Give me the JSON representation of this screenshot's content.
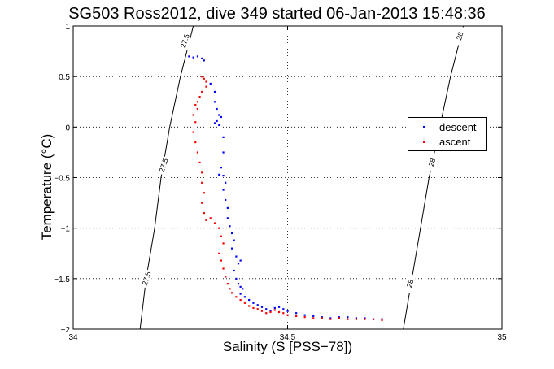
{
  "chart_data": {
    "type": "scatter",
    "title": "SG503 Ross2012, dive 349 started 06-Jan-2013 15:48:36",
    "xlabel": "Salinity (S [PSS−78])",
    "ylabel": "Temperature (°C)",
    "xlim": [
      34,
      35
    ],
    "ylim": [
      -2,
      1
    ],
    "xticks": [
      34,
      34.5,
      35
    ],
    "xtick_labels": [
      "34",
      "34.5",
      "35"
    ],
    "yticks": [
      -2,
      -1.5,
      -1,
      -0.5,
      0,
      0.5,
      1
    ],
    "ytick_labels": [
      "−2",
      "−1.5",
      "−1",
      "−0.5",
      "0",
      "0.5",
      "1"
    ],
    "grid": true,
    "legend_position": "right",
    "series": [
      {
        "name": "descent",
        "color": "#0000ff",
        "points": [
          [
            34.27,
            0.7
          ],
          [
            34.28,
            0.69
          ],
          [
            34.29,
            0.7
          ],
          [
            34.3,
            0.68
          ],
          [
            34.305,
            0.66
          ],
          [
            34.32,
            0.43
          ],
          [
            34.33,
            0.35
          ],
          [
            34.33,
            0.25
          ],
          [
            34.335,
            0.18
          ],
          [
            34.34,
            0.12
          ],
          [
            34.335,
            0.06
          ],
          [
            34.33,
            0.04
          ],
          [
            34.34,
            0.02
          ],
          [
            34.345,
            0.1
          ],
          [
            34.35,
            -0.1
          ],
          [
            34.35,
            -0.25
          ],
          [
            34.345,
            -0.4
          ],
          [
            34.34,
            -0.47
          ],
          [
            34.35,
            -0.48
          ],
          [
            34.355,
            -0.55
          ],
          [
            34.35,
            -0.62
          ],
          [
            34.355,
            -0.72
          ],
          [
            34.36,
            -0.8
          ],
          [
            34.36,
            -0.9
          ],
          [
            34.365,
            -0.98
          ],
          [
            34.37,
            -1.05
          ],
          [
            34.375,
            -1.12
          ],
          [
            34.37,
            -1.2
          ],
          [
            34.38,
            -1.28
          ],
          [
            34.385,
            -1.35
          ],
          [
            34.39,
            -1.32
          ],
          [
            34.375,
            -1.42
          ],
          [
            34.38,
            -1.5
          ],
          [
            34.385,
            -1.55
          ],
          [
            34.39,
            -1.58
          ],
          [
            34.395,
            -1.6
          ],
          [
            34.39,
            -1.65
          ],
          [
            34.4,
            -1.68
          ],
          [
            34.41,
            -1.71
          ],
          [
            34.42,
            -1.74
          ],
          [
            34.43,
            -1.76
          ],
          [
            34.44,
            -1.78
          ],
          [
            34.45,
            -1.8
          ],
          [
            34.46,
            -1.82
          ],
          [
            34.47,
            -1.79
          ],
          [
            34.48,
            -1.78
          ],
          [
            34.49,
            -1.8
          ],
          [
            34.5,
            -1.82
          ],
          [
            34.52,
            -1.84
          ],
          [
            34.54,
            -1.86
          ],
          [
            34.56,
            -1.87
          ],
          [
            34.58,
            -1.88
          ],
          [
            34.6,
            -1.89
          ],
          [
            34.62,
            -1.88
          ],
          [
            34.64,
            -1.88
          ],
          [
            34.66,
            -1.89
          ],
          [
            34.68,
            -1.89
          ],
          [
            34.7,
            -1.9
          ],
          [
            34.72,
            -1.9
          ]
        ]
      },
      {
        "name": "ascent",
        "color": "#ff0000",
        "points": [
          [
            34.3,
            0.5
          ],
          [
            34.305,
            0.48
          ],
          [
            34.31,
            0.45
          ],
          [
            34.31,
            0.4
          ],
          [
            34.3,
            0.35
          ],
          [
            34.295,
            0.3
          ],
          [
            34.29,
            0.25
          ],
          [
            34.285,
            0.22
          ],
          [
            34.29,
            0.18
          ],
          [
            34.28,
            0.12
          ],
          [
            34.285,
            0.05
          ],
          [
            34.28,
            -0.05
          ],
          [
            34.285,
            -0.15
          ],
          [
            34.29,
            -0.25
          ],
          [
            34.295,
            -0.35
          ],
          [
            34.3,
            -0.45
          ],
          [
            34.3,
            -0.55
          ],
          [
            34.305,
            -0.65
          ],
          [
            34.3,
            -0.75
          ],
          [
            34.305,
            -0.85
          ],
          [
            34.31,
            -0.92
          ],
          [
            34.32,
            -0.9
          ],
          [
            34.33,
            -0.95
          ],
          [
            34.34,
            -1.0
          ],
          [
            34.345,
            -1.08
          ],
          [
            34.35,
            -1.15
          ],
          [
            34.34,
            -1.25
          ],
          [
            34.345,
            -1.32
          ],
          [
            34.35,
            -1.4
          ],
          [
            34.355,
            -1.48
          ],
          [
            34.36,
            -1.55
          ],
          [
            34.365,
            -1.6
          ],
          [
            34.37,
            -1.64
          ],
          [
            34.38,
            -1.68
          ],
          [
            34.39,
            -1.71
          ],
          [
            34.4,
            -1.74
          ],
          [
            34.41,
            -1.77
          ],
          [
            34.42,
            -1.79
          ],
          [
            34.43,
            -1.8
          ],
          [
            34.44,
            -1.82
          ],
          [
            34.45,
            -1.84
          ],
          [
            34.46,
            -1.83
          ],
          [
            34.47,
            -1.81
          ],
          [
            34.48,
            -1.83
          ],
          [
            34.49,
            -1.84
          ],
          [
            34.5,
            -1.86
          ],
          [
            34.52,
            -1.87
          ],
          [
            34.54,
            -1.88
          ],
          [
            34.56,
            -1.89
          ],
          [
            34.58,
            -1.89
          ],
          [
            34.6,
            -1.9
          ],
          [
            34.62,
            -1.89
          ],
          [
            34.64,
            -1.9
          ],
          [
            34.66,
            -1.9
          ],
          [
            34.68,
            -1.9
          ],
          [
            34.7,
            -1.9
          ],
          [
            34.72,
            -1.91
          ]
        ]
      }
    ],
    "isopycnals": [
      {
        "label": "27.5",
        "points": [
          [
            34.156,
            -2.0
          ],
          [
            34.17,
            -1.5
          ],
          [
            34.19,
            -1.0
          ],
          [
            34.205,
            -0.5
          ],
          [
            34.225,
            0.0
          ],
          [
            34.25,
            0.5
          ],
          [
            34.28,
            1.0
          ]
        ],
        "label_positions": [
          [
            34.172,
            -1.5
          ],
          [
            34.212,
            -0.38
          ],
          [
            34.262,
            0.85
          ]
        ]
      },
      {
        "label": "28",
        "points": [
          [
            34.77,
            -2.0
          ],
          [
            34.79,
            -1.5
          ],
          [
            34.81,
            -1.0
          ],
          [
            34.83,
            -0.5
          ],
          [
            34.855,
            0.0
          ],
          [
            34.88,
            0.5
          ],
          [
            34.91,
            1.0
          ]
        ],
        "label_positions": [
          [
            34.787,
            -1.55
          ],
          [
            34.838,
            -0.35
          ],
          [
            34.903,
            0.9
          ]
        ]
      }
    ]
  }
}
